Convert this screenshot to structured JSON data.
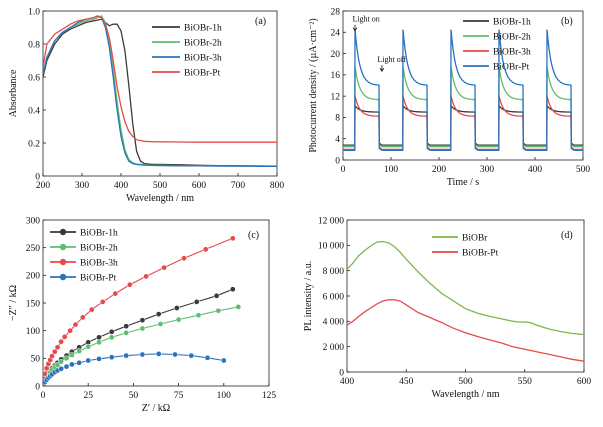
{
  "colors": {
    "black": "#3a3a3a",
    "green": "#5dbf6e",
    "red": "#e64b4b",
    "blue": "#2b72bd",
    "lightgreen": "#7db847"
  },
  "chart_data": [
    {
      "panel": "(a)",
      "type": "line",
      "xlabel": "Wavelength / nm",
      "ylabel": "Absorbance",
      "xlim": [
        200,
        800
      ],
      "ylim": [
        0,
        1.0
      ],
      "xticks": [
        200,
        300,
        400,
        500,
        600,
        700,
        800
      ],
      "yticks": [
        0,
        0.2,
        0.4,
        0.6,
        0.8,
        1.0
      ],
      "ytick_labels": [
        "0",
        "0.2",
        "0.4",
        "0.6",
        "0.8",
        "1.0"
      ],
      "legend": "top-right",
      "series": [
        {
          "name": "BiOBr-1h",
          "color": "black",
          "x": [
            200,
            210,
            230,
            250,
            270,
            290,
            310,
            330,
            350,
            360,
            370,
            380,
            390,
            400,
            410,
            420,
            430,
            440,
            450,
            460,
            480,
            500,
            550,
            600,
            650,
            700,
            750,
            800
          ],
          "y": [
            0.6,
            0.7,
            0.8,
            0.86,
            0.89,
            0.91,
            0.93,
            0.94,
            0.95,
            0.93,
            0.91,
            0.92,
            0.92,
            0.88,
            0.76,
            0.55,
            0.32,
            0.15,
            0.09,
            0.075,
            0.07,
            0.07,
            0.068,
            0.065,
            0.063,
            0.062,
            0.061,
            0.06
          ]
        },
        {
          "name": "BiOBr-2h",
          "color": "green",
          "x": [
            200,
            210,
            230,
            250,
            270,
            290,
            310,
            330,
            340,
            350,
            360,
            370,
            380,
            390,
            400,
            410,
            420,
            430,
            440,
            450,
            460,
            480,
            500,
            550,
            600,
            650,
            700,
            750,
            800
          ],
          "y": [
            0.62,
            0.72,
            0.82,
            0.87,
            0.9,
            0.92,
            0.94,
            0.95,
            0.96,
            0.97,
            0.93,
            0.82,
            0.65,
            0.45,
            0.28,
            0.16,
            0.1,
            0.08,
            0.072,
            0.07,
            0.068,
            0.066,
            0.065,
            0.063,
            0.062,
            0.061,
            0.06,
            0.06,
            0.059
          ]
        },
        {
          "name": "BiOBr-3h",
          "color": "blue",
          "x": [
            200,
            210,
            230,
            250,
            270,
            290,
            310,
            330,
            340,
            350,
            360,
            370,
            380,
            390,
            400,
            410,
            420,
            430,
            440,
            450,
            460,
            480,
            500,
            550,
            600,
            650,
            700,
            750,
            800
          ],
          "y": [
            0.62,
            0.72,
            0.82,
            0.87,
            0.9,
            0.93,
            0.95,
            0.96,
            0.97,
            0.96,
            0.9,
            0.78,
            0.6,
            0.4,
            0.24,
            0.14,
            0.09,
            0.075,
            0.07,
            0.068,
            0.066,
            0.064,
            0.063,
            0.062,
            0.061,
            0.06,
            0.06,
            0.059,
            0.059
          ]
        },
        {
          "name": "BiOBr-Pt",
          "color": "red",
          "x": [
            200,
            210,
            230,
            250,
            270,
            290,
            310,
            330,
            340,
            350,
            360,
            370,
            380,
            390,
            400,
            410,
            420,
            430,
            440,
            450,
            460,
            480,
            500,
            550,
            600,
            650,
            700,
            750,
            800
          ],
          "y": [
            0.66,
            0.8,
            0.86,
            0.89,
            0.92,
            0.94,
            0.95,
            0.96,
            0.97,
            0.96,
            0.92,
            0.84,
            0.7,
            0.54,
            0.42,
            0.33,
            0.27,
            0.24,
            0.22,
            0.215,
            0.21,
            0.208,
            0.207,
            0.206,
            0.205,
            0.205,
            0.205,
            0.205,
            0.205
          ]
        }
      ]
    },
    {
      "panel": "(b)",
      "type": "line",
      "xlabel": "Time / s",
      "ylabel": "Photocurrent density / (µA·cm⁻²)",
      "xlim": [
        0,
        500
      ],
      "ylim": [
        0,
        28
      ],
      "xticks": [
        0,
        100,
        200,
        300,
        400,
        500
      ],
      "yticks": [
        0,
        4,
        8,
        12,
        16,
        20,
        24,
        28
      ],
      "legend": "top-right",
      "annotations": [
        {
          "text": "Light on",
          "x": 28,
          "y": 25.8
        },
        {
          "text": "Light off",
          "x": 80,
          "y": 18.2
        }
      ],
      "on_intervals": [
        [
          25,
          75
        ],
        [
          125,
          175
        ],
        [
          225,
          275
        ],
        [
          325,
          375
        ],
        [
          425,
          475
        ]
      ],
      "series": [
        {
          "name": "BiOBr-1h",
          "color": "black",
          "dark": 2.8,
          "peak": 10.2,
          "plateau": 9.0
        },
        {
          "name": "BiOBr-2h",
          "color": "green",
          "dark": 2.5,
          "peak": 17.5,
          "plateau": 11.3
        },
        {
          "name": "BiOBr-3h",
          "color": "red",
          "dark": 2.0,
          "peak": 12.0,
          "plateau": 8.2
        },
        {
          "name": "BiOBr-Pt",
          "color": "blue",
          "dark": 1.8,
          "peak": 24.5,
          "plateau": 14.0
        }
      ]
    },
    {
      "panel": "(c)",
      "type": "scatter",
      "xlabel": "Z′ / kΩ",
      "ylabel": "−Z″ / kΩ",
      "xlim": [
        0,
        125
      ],
      "ylim": [
        0,
        300
      ],
      "xticks": [
        0,
        25,
        50,
        75,
        100,
        125
      ],
      "yticks": [
        0,
        50,
        100,
        150,
        200,
        250,
        300
      ],
      "legend": "top-left",
      "series": [
        {
          "name": "BiOBr-1h",
          "color": "black",
          "x": [
            0.5,
            1,
            2,
            3,
            4,
            5,
            6.5,
            8,
            10,
            13,
            16,
            20,
            25,
            31,
            38,
            46,
            55,
            64,
            74,
            85,
            96,
            105
          ],
          "y": [
            8,
            13,
            19,
            24,
            28,
            32,
            37,
            42,
            48,
            55,
            62,
            70,
            79,
            88,
            98,
            108,
            119,
            130,
            141,
            152,
            163,
            175
          ]
        },
        {
          "name": "BiOBr-2h",
          "color": "green",
          "x": [
            0.5,
            1,
            2,
            3,
            4,
            5,
            6.5,
            8,
            10,
            13,
            16,
            20,
            25,
            31,
            38,
            46,
            55,
            65,
            75,
            86,
            97,
            108
          ],
          "y": [
            6,
            10,
            16,
            21,
            25,
            29,
            34,
            38,
            44,
            50,
            56,
            63,
            71,
            79,
            88,
            96,
            104,
            112,
            120,
            128,
            136,
            143
          ]
        },
        {
          "name": "BiOBr-3h",
          "color": "red",
          "x": [
            0.5,
            1,
            2,
            3,
            4,
            5,
            6.5,
            8,
            10,
            12,
            15,
            18,
            22,
            27,
            33,
            40,
            48,
            57,
            67,
            78,
            90,
            105
          ],
          "y": [
            14,
            22,
            32,
            40,
            47,
            54,
            62,
            70,
            80,
            89,
            100,
            111,
            124,
            138,
            152,
            167,
            183,
            198,
            214,
            231,
            247,
            267
          ]
        },
        {
          "name": "BiOBr-Pt",
          "color": "blue",
          "x": [
            0.5,
            1,
            2,
            3,
            4,
            5,
            6.5,
            8,
            10,
            13,
            16,
            20,
            25,
            31,
            38,
            46,
            55,
            64,
            73,
            82,
            91,
            100
          ],
          "y": [
            4,
            7,
            11,
            15,
            18,
            21,
            25,
            28,
            31,
            35,
            39,
            42,
            46,
            49,
            52,
            55,
            57,
            58,
            57,
            55,
            51,
            46
          ]
        }
      ]
    },
    {
      "panel": "(d)",
      "type": "line",
      "xlabel": "Wavelength / nm",
      "ylabel": "PL intensity / a.u.",
      "xlim": [
        400,
        600
      ],
      "ylim": [
        0,
        12000
      ],
      "xticks": [
        400,
        450,
        500,
        550,
        600
      ],
      "yticks": [
        0,
        2000,
        4000,
        6000,
        8000,
        10000,
        12000
      ],
      "ytick_labels": [
        "0",
        "2 000",
        "4 000",
        "6 000",
        "8 000",
        "10 000",
        "12 000"
      ],
      "legend": "top-right",
      "series": [
        {
          "name": "BiOBr",
          "color": "lightgreen",
          "x": [
            400,
            405,
            410,
            415,
            420,
            425,
            430,
            435,
            440,
            445,
            450,
            455,
            460,
            470,
            480,
            490,
            500,
            510,
            520,
            530,
            540,
            545,
            550,
            555,
            560,
            570,
            580,
            590,
            600
          ],
          "y": [
            8100,
            8600,
            9200,
            9600,
            9950,
            10250,
            10300,
            10200,
            9900,
            9450,
            8900,
            8400,
            7900,
            7000,
            6200,
            5600,
            5000,
            4650,
            4400,
            4200,
            4000,
            3950,
            3950,
            3900,
            3700,
            3400,
            3200,
            3050,
            2950
          ]
        },
        {
          "name": "BiOBr-Pt",
          "color": "red",
          "x": [
            400,
            405,
            410,
            415,
            420,
            425,
            430,
            435,
            440,
            445,
            450,
            455,
            460,
            470,
            480,
            490,
            500,
            510,
            520,
            530,
            540,
            550,
            560,
            570,
            580,
            590,
            600
          ],
          "y": [
            3700,
            4000,
            4400,
            4750,
            5050,
            5350,
            5600,
            5700,
            5700,
            5600,
            5300,
            5000,
            4700,
            4300,
            3900,
            3450,
            3100,
            2800,
            2550,
            2300,
            2000,
            1800,
            1600,
            1400,
            1200,
            1000,
            850
          ]
        }
      ]
    }
  ]
}
